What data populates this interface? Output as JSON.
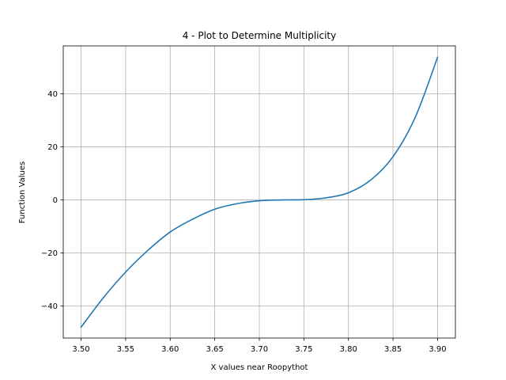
{
  "chart_data": {
    "type": "line",
    "title": "4 - Plot to Determine Multiplicity",
    "xlabel": "X values near Roopythot",
    "ylabel": "Function Values",
    "xlim": [
      3.48,
      3.92
    ],
    "ylim": [
      -52.1,
      58.1
    ],
    "xticks": [
      3.5,
      3.55,
      3.6,
      3.65,
      3.7,
      3.75,
      3.8,
      3.85,
      3.9
    ],
    "xtick_labels": [
      "3.50",
      "3.55",
      "3.60",
      "3.65",
      "3.70",
      "3.75",
      "3.80",
      "3.85",
      "3.90"
    ],
    "yticks": [
      -40,
      -20,
      0,
      20,
      40
    ],
    "ytick_labels": [
      "−40",
      "−20",
      "0",
      "20",
      "40"
    ],
    "grid": true,
    "series": [
      {
        "color": "#1f77b4",
        "x": [
          3.5,
          3.525,
          3.55,
          3.575,
          3.6,
          3.625,
          3.65,
          3.675,
          3.7,
          3.725,
          3.75,
          3.775,
          3.8,
          3.825,
          3.85,
          3.875,
          3.9
        ],
        "y": [
          -48.0,
          -36.9,
          -27.2,
          -19.0,
          -12.1,
          -7.3,
          -3.5,
          -1.4,
          -0.3,
          0.0,
          0.1,
          0.8,
          2.7,
          7.5,
          16.3,
          31.2,
          53.8
        ]
      }
    ]
  }
}
